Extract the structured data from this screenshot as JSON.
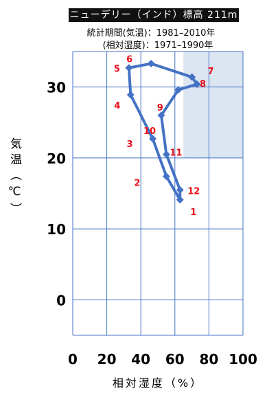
{
  "header": {
    "title": "ニューデリー（インド）標高 211m",
    "subtitle_temp": "統計期間(気温)：1981–2010年",
    "subtitle_humidity": "(相対湿度)：1971–1990年"
  },
  "colors": {
    "line": "#4472c4",
    "month_label": "#e8101a",
    "grid": "#4472c4",
    "shade": "#dce6f2",
    "title_bg": "#111111"
  },
  "chart_data": {
    "type": "line",
    "xlabel": "相対湿度（%）",
    "ylabel": "気温（℃）",
    "xlim": [
      0,
      100
    ],
    "ylim": [
      -5,
      35
    ],
    "x_ticks": [
      0,
      20,
      40,
      60,
      80,
      100
    ],
    "y_ticks": [
      0,
      10,
      20,
      30
    ],
    "x_tick_labels": [
      "0",
      "20",
      "40",
      "60",
      "80",
      "100"
    ],
    "y_tick_labels": [
      "0",
      "10",
      "20",
      "30"
    ],
    "grid": true,
    "shaded_region": {
      "x": [
        65,
        100
      ],
      "y": [
        20,
        35
      ]
    },
    "points": [
      {
        "month": "1",
        "humidity": 63,
        "temp": 14.1
      },
      {
        "month": "2",
        "humidity": 55,
        "temp": 17.4
      },
      {
        "month": "3",
        "humidity": 47,
        "temp": 22.7
      },
      {
        "month": "4",
        "humidity": 34,
        "temp": 28.9
      },
      {
        "month": "5",
        "humidity": 33,
        "temp": 32.7
      },
      {
        "month": "6",
        "humidity": 46,
        "temp": 33.3
      },
      {
        "month": "7",
        "humidity": 70,
        "temp": 31.4
      },
      {
        "month": "8",
        "humidity": 73,
        "temp": 30.4
      },
      {
        "month": "9",
        "humidity": 62,
        "temp": 29.6
      },
      {
        "month": "10",
        "humidity": 52,
        "temp": 26.0
      },
      {
        "month": "11",
        "humidity": 55,
        "temp": 20.5
      },
      {
        "month": "12",
        "humidity": 63,
        "temp": 15.5
      }
    ],
    "path_order": [
      "1",
      "2",
      "3",
      "4",
      "5",
      "6",
      "7",
      "8",
      "9",
      "10",
      "11",
      "12",
      "1"
    ]
  }
}
